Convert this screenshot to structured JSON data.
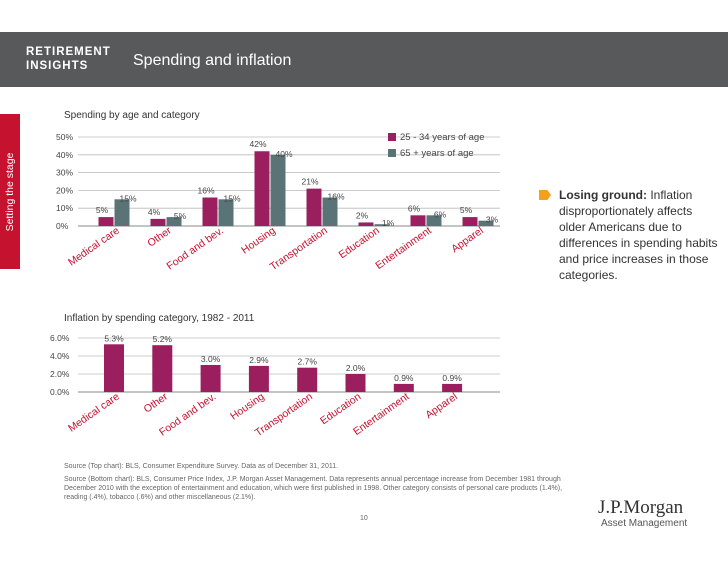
{
  "header": {
    "brand_line1": "RETIREMENT",
    "brand_line2": "INSIGHTS",
    "title": "Spending and inflation",
    "side_label": "Setting the stage"
  },
  "chart_data": [
    {
      "type": "bar",
      "title": "Spending by age and category",
      "categories": [
        "Medical care",
        "Other",
        "Food and bev.",
        "Housing",
        "Transportation",
        "Education",
        "Entertainment",
        "Apparel"
      ],
      "series": [
        {
          "name": "25 - 34 years of age",
          "color": "#9b1f5f",
          "values": [
            5,
            4,
            16,
            42,
            21,
            2,
            6,
            5
          ]
        },
        {
          "name": "65 + years of age",
          "color": "#5a7376",
          "values": [
            15,
            5,
            15,
            40,
            16,
            1,
            6,
            3
          ]
        }
      ],
      "value_labels": [
        [
          "5%",
          "15%"
        ],
        [
          "4%",
          "5%"
        ],
        [
          "16%",
          "15%"
        ],
        [
          "42%",
          "40%"
        ],
        [
          "21%",
          "16%"
        ],
        [
          "2%",
          "1%"
        ],
        [
          "6%",
          "6%"
        ],
        [
          "5%",
          "3%"
        ]
      ],
      "yticks": [
        "50%",
        "40%",
        "30%",
        "20%",
        "10%",
        "0%"
      ],
      "ylim": [
        0,
        50
      ],
      "legend": "top-right"
    },
    {
      "type": "bar",
      "title": "Inflation by spending category, 1982 - 2011",
      "categories": [
        "Medical care",
        "Other",
        "Food and bev.",
        "Housing",
        "Transportation",
        "Education",
        "Entertainment",
        "Apparel"
      ],
      "series": [
        {
          "name": "Inflation",
          "color": "#9b1f5f",
          "values": [
            5.3,
            5.2,
            3.0,
            2.9,
            2.7,
            2.0,
            0.9,
            0.9
          ]
        }
      ],
      "value_labels": [
        "5.3%",
        "5.2%",
        "3.0%",
        "2.9%",
        "2.7%",
        "2.0%",
        "0.9%",
        "0.9%"
      ],
      "yticks": [
        "6.0%",
        "4.0%",
        "2.0%",
        "0.0%"
      ],
      "ylim": [
        0,
        6
      ]
    }
  ],
  "callout": {
    "bold": "Losing ground:",
    "text": " Inflation disproportionately affects older Americans due to differences in spending habits and price increases in those categories."
  },
  "sources": {
    "top": "Source (Top chart): BLS, Consumer Expenditure Survey. Data as of December 31, 2011.",
    "bottom": "Source (Bottom chart): BLS, Consumer Price Index, J.P. Morgan Asset Management. Data represents annual percentage increase from December 1981 through December 2010 with the exception of entertainment and education, which were first published in 1998. Other category consists of personal care products (1.4%), reading (.4%), tobacco (.6%) and other miscellaneous (2.1%)."
  },
  "page_number": "10",
  "logo": {
    "name": "J.P.Morgan",
    "sub": "Asset Management"
  }
}
